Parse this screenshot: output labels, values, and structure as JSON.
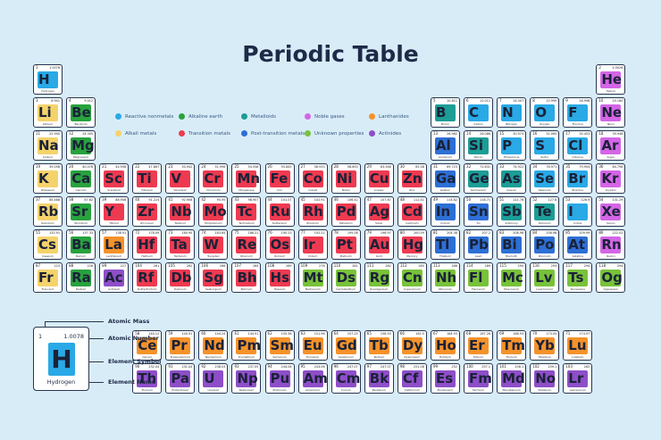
{
  "title": "Periodic Table",
  "legend": [
    {
      "label": "Reactive nonmetals",
      "color": "#29a9e6",
      "cat": "reactive",
      "col": 0,
      "row": 0
    },
    {
      "label": "Alkali metals",
      "color": "#f5d36b",
      "cat": "alkali",
      "col": 0,
      "row": 1
    },
    {
      "label": "Alkaline earth",
      "color": "#28a23e",
      "cat": "alkearth",
      "col": 1,
      "row": 0
    },
    {
      "label": "Transition metals",
      "color": "#ee3a50",
      "cat": "trans",
      "col": 1,
      "row": 1
    },
    {
      "label": "Metalloids",
      "color": "#1c9d96",
      "cat": "metalloid",
      "col": 2,
      "row": 0
    },
    {
      "label": "Post-transition metals",
      "color": "#2d6fd5",
      "cat": "post",
      "col": 2,
      "row": 1
    },
    {
      "label": "Noble gases",
      "color": "#d465e6",
      "cat": "noble",
      "col": 3,
      "row": 0
    },
    {
      "label": "Unknown properties",
      "color": "#78c23a",
      "cat": "unknown",
      "col": 3,
      "row": 1
    },
    {
      "label": "Lanthanides",
      "color": "#f5922a",
      "cat": "lanth",
      "col": 4,
      "row": 0
    },
    {
      "label": "Actinides",
      "color": "#8e4ec8",
      "cat": "act",
      "col": 4,
      "row": 1
    }
  ],
  "key": {
    "number": "1",
    "mass": "1.0078",
    "symbol": "H",
    "name": "Hydrogen",
    "labels": {
      "mass": "Atomic Mass",
      "number": "Atomic Number",
      "symbol": "Element Symbol",
      "name": "Element Name"
    }
  },
  "elements": [
    {
      "n": 1,
      "s": "H",
      "name": "Hydrogen",
      "m": "1.0078",
      "c": "reactive",
      "r": 1,
      "g": 1
    },
    {
      "n": 2,
      "s": "He",
      "name": "Helium",
      "m": "4.0026",
      "c": "noble",
      "r": 1,
      "g": 18
    },
    {
      "n": 3,
      "s": "Li",
      "name": "Lithium",
      "m": "6.941",
      "c": "alkali",
      "r": 2,
      "g": 1
    },
    {
      "n": 4,
      "s": "Be",
      "name": "Beryllium",
      "m": "9.012",
      "c": "alkearth",
      "r": 2,
      "g": 2
    },
    {
      "n": 5,
      "s": "B",
      "name": "Boron",
      "m": "10.811",
      "c": "metalloid",
      "r": 2,
      "g": 13
    },
    {
      "n": 6,
      "s": "C",
      "name": "Carbon",
      "m": "12.011",
      "c": "reactive",
      "r": 2,
      "g": 14
    },
    {
      "n": 7,
      "s": "N",
      "name": "Nitrogen",
      "m": "14.007",
      "c": "reactive",
      "r": 2,
      "g": 15
    },
    {
      "n": 8,
      "s": "O",
      "name": "Oxygen",
      "m": "15.999",
      "c": "reactive",
      "r": 2,
      "g": 16
    },
    {
      "n": 9,
      "s": "F",
      "name": "Fluorine",
      "m": "18.998",
      "c": "reactive",
      "r": 2,
      "g": 17
    },
    {
      "n": 10,
      "s": "Ne",
      "name": "Neon",
      "m": "20.180",
      "c": "noble",
      "r": 2,
      "g": 18
    },
    {
      "n": 11,
      "s": "Na",
      "name": "Sodium",
      "m": "22.990",
      "c": "alkali",
      "r": 3,
      "g": 1
    },
    {
      "n": 12,
      "s": "Mg",
      "name": "Magnesium",
      "m": "24.305",
      "c": "alkearth",
      "r": 3,
      "g": 2
    },
    {
      "n": 13,
      "s": "Al",
      "name": "Aluminum",
      "m": "26.982",
      "c": "post",
      "r": 3,
      "g": 13
    },
    {
      "n": 14,
      "s": "Si",
      "name": "Silicon",
      "m": "28.086",
      "c": "metalloid",
      "r": 3,
      "g": 14
    },
    {
      "n": 15,
      "s": "P",
      "name": "Phosphorus",
      "m": "30.974",
      "c": "reactive",
      "r": 3,
      "g": 15
    },
    {
      "n": 16,
      "s": "S",
      "name": "Sulfur",
      "m": "32.065",
      "c": "reactive",
      "r": 3,
      "g": 16
    },
    {
      "n": 17,
      "s": "Cl",
      "name": "Chlorine",
      "m": "35.453",
      "c": "reactive",
      "r": 3,
      "g": 17
    },
    {
      "n": 18,
      "s": "Ar",
      "name": "Argon",
      "m": "39.948",
      "c": "noble",
      "r": 3,
      "g": 18
    },
    {
      "n": 19,
      "s": "K",
      "name": "Potassium",
      "m": "39.098",
      "c": "alkali",
      "r": 4,
      "g": 1
    },
    {
      "n": 20,
      "s": "Ca",
      "name": "Calcium",
      "m": "40.078",
      "c": "alkearth",
      "r": 4,
      "g": 2
    },
    {
      "n": 21,
      "s": "Sc",
      "name": "Scandium",
      "m": "44.956",
      "c": "trans",
      "r": 4,
      "g": 3
    },
    {
      "n": 22,
      "s": "Ti",
      "name": "Titanium",
      "m": "47.867",
      "c": "trans",
      "r": 4,
      "g": 4
    },
    {
      "n": 23,
      "s": "V",
      "name": "Vanadium",
      "m": "50.942",
      "c": "trans",
      "r": 4,
      "g": 5
    },
    {
      "n": 24,
      "s": "Cr",
      "name": "Chromium",
      "m": "51.996",
      "c": "trans",
      "r": 4,
      "g": 6
    },
    {
      "n": 25,
      "s": "Mn",
      "name": "Manganese",
      "m": "54.938",
      "c": "trans",
      "r": 4,
      "g": 7
    },
    {
      "n": 26,
      "s": "Fe",
      "name": "Iron",
      "m": "55.845",
      "c": "trans",
      "r": 4,
      "g": 8
    },
    {
      "n": 27,
      "s": "Co",
      "name": "Cobalt",
      "m": "58.933",
      "c": "trans",
      "r": 4,
      "g": 9
    },
    {
      "n": 28,
      "s": "Ni",
      "name": "Nickel",
      "m": "58.693",
      "c": "trans",
      "r": 4,
      "g": 10
    },
    {
      "n": 29,
      "s": "Cu",
      "name": "Copper",
      "m": "63.546",
      "c": "trans",
      "r": 4,
      "g": 11
    },
    {
      "n": 30,
      "s": "Zn",
      "name": "Zinc",
      "m": "65.38",
      "c": "trans",
      "r": 4,
      "g": 12
    },
    {
      "n": 31,
      "s": "Ga",
      "name": "Gallium",
      "m": "69.723",
      "c": "post",
      "r": 4,
      "g": 13
    },
    {
      "n": 32,
      "s": "Ge",
      "name": "Germanium",
      "m": "72.631",
      "c": "metalloid",
      "r": 4,
      "g": 14
    },
    {
      "n": 33,
      "s": "As",
      "name": "Arsenic",
      "m": "74.922",
      "c": "metalloid",
      "r": 4,
      "g": 15
    },
    {
      "n": 34,
      "s": "Se",
      "name": "Selenium",
      "m": "78.971",
      "c": "reactive",
      "r": 4,
      "g": 16
    },
    {
      "n": 35,
      "s": "Br",
      "name": "Bromine",
      "m": "79.904",
      "c": "reactive",
      "r": 4,
      "g": 17
    },
    {
      "n": 36,
      "s": "Kr",
      "name": "Krypton",
      "m": "84.798",
      "c": "noble",
      "r": 4,
      "g": 18
    },
    {
      "n": 37,
      "s": "Rb",
      "name": "Rubidium",
      "m": "85.468",
      "c": "alkali",
      "r": 5,
      "g": 1
    },
    {
      "n": 38,
      "s": "Sr",
      "name": "Strontium",
      "m": "87.62",
      "c": "alkearth",
      "r": 5,
      "g": 2
    },
    {
      "n": 39,
      "s": "Y",
      "name": "Yttrium",
      "m": "88.906",
      "c": "trans",
      "r": 5,
      "g": 3
    },
    {
      "n": 40,
      "s": "Zr",
      "name": "Zirconium",
      "m": "91.224",
      "c": "trans",
      "r": 5,
      "g": 4
    },
    {
      "n": 41,
      "s": "Nb",
      "name": "Niobium",
      "m": "92.906",
      "c": "trans",
      "r": 5,
      "g": 5
    },
    {
      "n": 42,
      "s": "Mo",
      "name": "Molybdenum",
      "m": "95.95",
      "c": "trans",
      "r": 5,
      "g": 6
    },
    {
      "n": 43,
      "s": "Tc",
      "name": "Technetium",
      "m": "98.907",
      "c": "trans",
      "r": 5,
      "g": 7
    },
    {
      "n": 44,
      "s": "Ru",
      "name": "Ruthenium",
      "m": "101.07",
      "c": "trans",
      "r": 5,
      "g": 8
    },
    {
      "n": 45,
      "s": "Rh",
      "name": "Rhodium",
      "m": "102.91",
      "c": "trans",
      "r": 5,
      "g": 9
    },
    {
      "n": 46,
      "s": "Pd",
      "name": "Palladium",
      "m": "106.42",
      "c": "trans",
      "r": 5,
      "g": 10
    },
    {
      "n": 47,
      "s": "Ag",
      "name": "Silver",
      "m": "107.87",
      "c": "trans",
      "r": 5,
      "g": 11
    },
    {
      "n": 48,
      "s": "Cd",
      "name": "Cadmium",
      "m": "112.41",
      "c": "trans",
      "r": 5,
      "g": 12
    },
    {
      "n": 49,
      "s": "In",
      "name": "Indium",
      "m": "114.82",
      "c": "post",
      "r": 5,
      "g": 13
    },
    {
      "n": 50,
      "s": "Sn",
      "name": "Tin",
      "m": "118.71",
      "c": "post",
      "r": 5,
      "g": 14
    },
    {
      "n": 51,
      "s": "Sb",
      "name": "Antimony",
      "m": "121.76",
      "c": "metalloid",
      "r": 5,
      "g": 15
    },
    {
      "n": 52,
      "s": "Te",
      "name": "Tellurium",
      "m": "127.6",
      "c": "metalloid",
      "r": 5,
      "g": 16
    },
    {
      "n": 53,
      "s": "I",
      "name": "Iodine",
      "m": "126.9",
      "c": "reactive",
      "r": 5,
      "g": 17
    },
    {
      "n": 54,
      "s": "Xe",
      "name": "Xenon",
      "m": "131.29",
      "c": "noble",
      "r": 5,
      "g": 18
    },
    {
      "n": 55,
      "s": "Cs",
      "name": "Caesium",
      "m": "132.91",
      "c": "alkali",
      "r": 6,
      "g": 1
    },
    {
      "n": 56,
      "s": "Ba",
      "name": "Barium",
      "m": "137.33",
      "c": "alkearth",
      "r": 6,
      "g": 2
    },
    {
      "n": 57,
      "s": "La",
      "name": "Lanthanum",
      "m": "138.91",
      "c": "lanth",
      "r": 6,
      "g": 3
    },
    {
      "n": 72,
      "s": "Hf",
      "name": "Hafnium",
      "m": "178.49",
      "c": "trans",
      "r": 6,
      "g": 4
    },
    {
      "n": 73,
      "s": "Ta",
      "name": "Tantalum",
      "m": "180.95",
      "c": "trans",
      "r": 6,
      "g": 5
    },
    {
      "n": 74,
      "s": "W",
      "name": "Tungsten",
      "m": "183.84",
      "c": "trans",
      "r": 6,
      "g": 6
    },
    {
      "n": 75,
      "s": "Re",
      "name": "Rhenium",
      "m": "186.21",
      "c": "trans",
      "r": 6,
      "g": 7
    },
    {
      "n": 76,
      "s": "Os",
      "name": "Osmium",
      "m": "190.23",
      "c": "trans",
      "r": 6,
      "g": 8
    },
    {
      "n": 77,
      "s": "Ir",
      "name": "Iridium",
      "m": "192.22",
      "c": "trans",
      "r": 6,
      "g": 9
    },
    {
      "n": 78,
      "s": "Pt",
      "name": "Platinum",
      "m": "195.08",
      "c": "trans",
      "r": 6,
      "g": 10
    },
    {
      "n": 79,
      "s": "Au",
      "name": "Gold",
      "m": "196.97",
      "c": "trans",
      "r": 6,
      "g": 11
    },
    {
      "n": 80,
      "s": "Hg",
      "name": "Mercury",
      "m": "200.59",
      "c": "trans",
      "r": 6,
      "g": 12
    },
    {
      "n": 81,
      "s": "Tl",
      "name": "Thallium",
      "m": "204.38",
      "c": "post",
      "r": 6,
      "g": 13
    },
    {
      "n": 82,
      "s": "Pb",
      "name": "Lead",
      "m": "207.2",
      "c": "post",
      "r": 6,
      "g": 14
    },
    {
      "n": 83,
      "s": "Bi",
      "name": "Bismuth",
      "m": "208.98",
      "c": "post",
      "r": 6,
      "g": 15
    },
    {
      "n": 84,
      "s": "Po",
      "name": "Polonium",
      "m": "208.98",
      "c": "post",
      "r": 6,
      "g": 16
    },
    {
      "n": 85,
      "s": "At",
      "name": "Astatine",
      "m": "209.99",
      "c": "post",
      "r": 6,
      "g": 17
    },
    {
      "n": 86,
      "s": "Rn",
      "name": "Radon",
      "m": "222.02",
      "c": "noble",
      "r": 6,
      "g": 18
    },
    {
      "n": 87,
      "s": "Fr",
      "name": "Francium",
      "m": "223",
      "c": "alkali",
      "r": 7,
      "g": 1
    },
    {
      "n": 88,
      "s": "Ra",
      "name": "Radium",
      "m": "226",
      "c": "alkearth",
      "r": 7,
      "g": 2
    },
    {
      "n": 89,
      "s": "Ac",
      "name": "Actinium",
      "m": "227",
      "c": "act",
      "r": 7,
      "g": 3
    },
    {
      "n": 104,
      "s": "Rf",
      "name": "Rutherfordium",
      "m": "261",
      "c": "trans",
      "r": 7,
      "g": 4
    },
    {
      "n": 105,
      "s": "Db",
      "name": "Dubnium",
      "m": "262",
      "c": "trans",
      "r": 7,
      "g": 5
    },
    {
      "n": 106,
      "s": "Sg",
      "name": "Seaborgium",
      "m": "266",
      "c": "trans",
      "r": 7,
      "g": 6
    },
    {
      "n": 107,
      "s": "Bh",
      "name": "Bohrium",
      "m": "264",
      "c": "trans",
      "r": 7,
      "g": 7
    },
    {
      "n": 108,
      "s": "Hs",
      "name": "Hassium",
      "m": "269",
      "c": "trans",
      "r": 7,
      "g": 8
    },
    {
      "n": 109,
      "s": "Mt",
      "name": "Meitnerium",
      "m": "278",
      "c": "unknown",
      "r": 7,
      "g": 9
    },
    {
      "n": 110,
      "s": "Ds",
      "name": "Darmstadtium",
      "m": "281",
      "c": "unknown",
      "r": 7,
      "g": 10
    },
    {
      "n": 111,
      "s": "Rg",
      "name": "Roentgenium",
      "m": "282",
      "c": "unknown",
      "r": 7,
      "g": 11
    },
    {
      "n": 112,
      "s": "Cn",
      "name": "Copernicium",
      "m": "285",
      "c": "unknown",
      "r": 7,
      "g": 12
    },
    {
      "n": 113,
      "s": "Nh",
      "name": "Nihonium",
      "m": "286",
      "c": "unknown",
      "r": 7,
      "g": 13
    },
    {
      "n": 114,
      "s": "Fl",
      "name": "Flerovium",
      "m": "289",
      "c": "unknown",
      "r": 7,
      "g": 14
    },
    {
      "n": 115,
      "s": "Mc",
      "name": "Moscovium",
      "m": "290",
      "c": "unknown",
      "r": 7,
      "g": 15
    },
    {
      "n": 116,
      "s": "Lv",
      "name": "Livermorium",
      "m": "293",
      "c": "unknown",
      "r": 7,
      "g": 16
    },
    {
      "n": 117,
      "s": "Ts",
      "name": "Tennessine",
      "m": "294",
      "c": "unknown",
      "r": 7,
      "g": 17
    },
    {
      "n": 118,
      "s": "Og",
      "name": "Oganesson",
      "m": "294",
      "c": "unknown",
      "r": 7,
      "g": 18
    },
    {
      "n": 58,
      "s": "Ce",
      "name": "Cerium",
      "m": "140.12",
      "c": "lanth",
      "r": 9,
      "g": 4
    },
    {
      "n": 59,
      "s": "Pr",
      "name": "Praseodymium",
      "m": "140.91",
      "c": "lanth",
      "r": 9,
      "g": 5
    },
    {
      "n": 60,
      "s": "Nd",
      "name": "Neodymium",
      "m": "144.24",
      "c": "lanth",
      "r": 9,
      "g": 6
    },
    {
      "n": 61,
      "s": "Pm",
      "name": "Promethium",
      "m": "144.91",
      "c": "lanth",
      "r": 9,
      "g": 7
    },
    {
      "n": 62,
      "s": "Sm",
      "name": "Samarium",
      "m": "150.36",
      "c": "lanth",
      "r": 9,
      "g": 8
    },
    {
      "n": 63,
      "s": "Eu",
      "name": "Europium",
      "m": "151.96",
      "c": "lanth",
      "r": 9,
      "g": 9
    },
    {
      "n": 64,
      "s": "Gd",
      "name": "Gadolinium",
      "m": "157.25",
      "c": "lanth",
      "r": 9,
      "g": 10
    },
    {
      "n": 65,
      "s": "Tb",
      "name": "Terbium",
      "m": "158.93",
      "c": "lanth",
      "r": 9,
      "g": 11
    },
    {
      "n": 66,
      "s": "Dy",
      "name": "Dysprosium",
      "m": "162.5",
      "c": "lanth",
      "r": 9,
      "g": 12
    },
    {
      "n": 67,
      "s": "Ho",
      "name": "Holmium",
      "m": "164.93",
      "c": "lanth",
      "r": 9,
      "g": 13
    },
    {
      "n": 68,
      "s": "Er",
      "name": "Erbium",
      "m": "167.26",
      "c": "lanth",
      "r": 9,
      "g": 14
    },
    {
      "n": 69,
      "s": "Tm",
      "name": "Thulium",
      "m": "168.93",
      "c": "lanth",
      "r": 9,
      "g": 15
    },
    {
      "n": 70,
      "s": "Yb",
      "name": "Ytterbium",
      "m": "173.05",
      "c": "lanth",
      "r": 9,
      "g": 16
    },
    {
      "n": 71,
      "s": "Lu",
      "name": "Lutetium",
      "m": "174.97",
      "c": "lanth",
      "r": 9,
      "g": 17
    },
    {
      "n": 90,
      "s": "Th",
      "name": "Thorium",
      "m": "232.04",
      "c": "act",
      "r": 10,
      "g": 4
    },
    {
      "n": 91,
      "s": "Pa",
      "name": "Protactinium",
      "m": "231.04",
      "c": "act",
      "r": 10,
      "g": 5
    },
    {
      "n": 92,
      "s": "U",
      "name": "Uranium",
      "m": "238.03",
      "c": "act",
      "r": 10,
      "g": 6
    },
    {
      "n": 93,
      "s": "Np",
      "name": "Neptunium",
      "m": "237.05",
      "c": "act",
      "r": 10,
      "g": 7
    },
    {
      "n": 94,
      "s": "Pu",
      "name": "Plutonium",
      "m": "244.06",
      "c": "act",
      "r": 10,
      "g": 8
    },
    {
      "n": 95,
      "s": "Am",
      "name": "Americium",
      "m": "243.06",
      "c": "act",
      "r": 10,
      "g": 9
    },
    {
      "n": 96,
      "s": "Cm",
      "name": "Curium",
      "m": "247.07",
      "c": "act",
      "r": 10,
      "g": 10
    },
    {
      "n": 97,
      "s": "Bk",
      "name": "Berkelium",
      "m": "247.07",
      "c": "act",
      "r": 10,
      "g": 11
    },
    {
      "n": 98,
      "s": "Cf",
      "name": "Californium",
      "m": "251.08",
      "c": "act",
      "r": 10,
      "g": 12
    },
    {
      "n": 99,
      "s": "Es",
      "name": "Einsteinium",
      "m": "252",
      "c": "act",
      "r": 10,
      "g": 13
    },
    {
      "n": 100,
      "s": "Fm",
      "name": "Fermium",
      "m": "257.1",
      "c": "act",
      "r": 10,
      "g": 14
    },
    {
      "n": 101,
      "s": "Md",
      "name": "Mendelevium",
      "m": "258.1",
      "c": "act",
      "r": 10,
      "g": 15
    },
    {
      "n": 102,
      "s": "No",
      "name": "Nobelium",
      "m": "259.1",
      "c": "act",
      "r": 10,
      "g": 16
    },
    {
      "n": 103,
      "s": "Lr",
      "name": "Lawrencium",
      "m": "262",
      "c": "act",
      "r": 10,
      "g": 17
    }
  ]
}
